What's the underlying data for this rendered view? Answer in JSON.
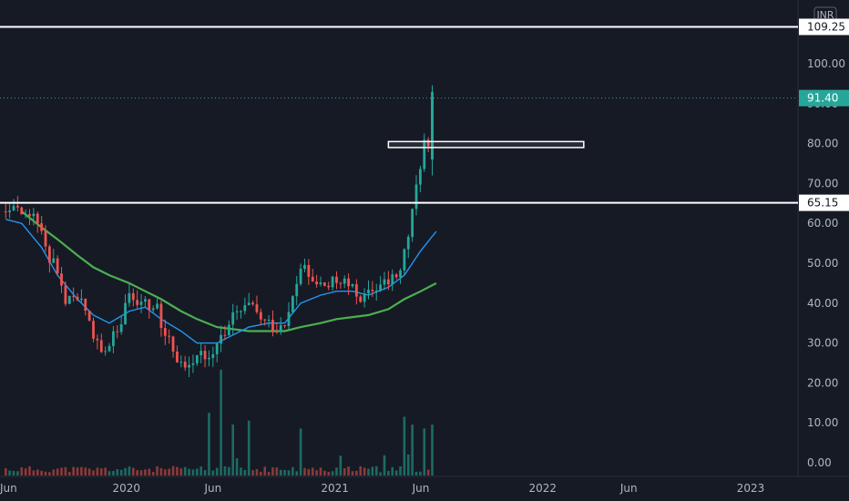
{
  "chart_data": {
    "type": "candlestick",
    "currency": "INR",
    "y_axis": {
      "min": 0,
      "max": 110,
      "ticks": [
        "0.00",
        "10.00",
        "20.00",
        "30.00",
        "40.00",
        "50.00",
        "60.00",
        "70.00",
        "80.00",
        "90.00",
        "100.00"
      ]
    },
    "x_axis": {
      "labels": [
        {
          "label": "Jun",
          "date": "2019-06-01"
        },
        {
          "label": "2020",
          "date": "2020-01-01"
        },
        {
          "label": "Jun",
          "date": "2020-06-01"
        },
        {
          "label": "2021",
          "date": "2021-01-01"
        },
        {
          "label": "Jun",
          "date": "2021-06-01"
        },
        {
          "label": "2022",
          "date": "2022-01-01"
        },
        {
          "label": "Jun",
          "date": "2022-06-01"
        },
        {
          "label": "2023",
          "date": "2023-01-01"
        }
      ]
    },
    "last_price": {
      "value": 91.4,
      "label": "91.40",
      "color": "#26a69a"
    },
    "levels": [
      {
        "value": 109.25,
        "label": "109.25"
      },
      {
        "value": 65.15,
        "label": "65.15"
      }
    ],
    "zone": {
      "from": "2021-04-05",
      "to": "2022-03-14",
      "low": 79,
      "high": 80.5
    },
    "price_path": [
      [
        "2019-06-03",
        63
      ],
      [
        "2019-06-24",
        65
      ],
      [
        "2019-07-22",
        62
      ],
      [
        "2019-08-19",
        52
      ],
      [
        "2019-09-16",
        41
      ],
      [
        "2019-10-14",
        40
      ],
      [
        "2019-11-04",
        33
      ],
      [
        "2019-11-25",
        27
      ],
      [
        "2019-12-16",
        34
      ],
      [
        "2020-01-06",
        42
      ],
      [
        "2020-02-03",
        41
      ],
      [
        "2020-02-24",
        38
      ],
      [
        "2020-03-16",
        30
      ],
      [
        "2020-04-06",
        25
      ],
      [
        "2020-04-27",
        26
      ],
      [
        "2020-05-25",
        28
      ],
      [
        "2020-06-15",
        31
      ],
      [
        "2020-07-06",
        36
      ],
      [
        "2020-08-03",
        39
      ],
      [
        "2020-08-31",
        35
      ],
      [
        "2020-09-21",
        34
      ],
      [
        "2020-10-12",
        37
      ],
      [
        "2020-11-02",
        49
      ],
      [
        "2020-11-23",
        45
      ],
      [
        "2020-12-21",
        44
      ],
      [
        "2021-01-11",
        46
      ],
      [
        "2021-02-01",
        43
      ],
      [
        "2021-02-22",
        41
      ],
      [
        "2021-03-15",
        44
      ],
      [
        "2021-04-05",
        45
      ],
      [
        "2021-04-26",
        48
      ],
      [
        "2021-05-10",
        57
      ],
      [
        "2021-05-17",
        62
      ],
      [
        "2021-05-24",
        69
      ],
      [
        "2021-05-31",
        75
      ],
      [
        "2021-06-07",
        80
      ],
      [
        "2021-06-14",
        78
      ],
      [
        "2021-06-21",
        91.4
      ]
    ],
    "ema_fast": [
      [
        "2019-06-03",
        61
      ],
      [
        "2019-07-01",
        60
      ],
      [
        "2019-08-05",
        54
      ],
      [
        "2019-09-02",
        47
      ],
      [
        "2019-10-07",
        41
      ],
      [
        "2019-11-04",
        37
      ],
      [
        "2019-12-02",
        35
      ],
      [
        "2020-01-06",
        38
      ],
      [
        "2020-02-03",
        39
      ],
      [
        "2020-03-02",
        36
      ],
      [
        "2020-04-06",
        33
      ],
      [
        "2020-05-04",
        30
      ],
      [
        "2020-06-08",
        30
      ],
      [
        "2020-07-06",
        32
      ],
      [
        "2020-08-03",
        34
      ],
      [
        "2020-09-07",
        35
      ],
      [
        "2020-10-05",
        35
      ],
      [
        "2020-11-02",
        40
      ],
      [
        "2020-12-07",
        42
      ],
      [
        "2021-01-04",
        43
      ],
      [
        "2021-02-01",
        43
      ],
      [
        "2021-03-01",
        42
      ],
      [
        "2021-04-05",
        44
      ],
      [
        "2021-05-03",
        47
      ],
      [
        "2021-05-31",
        53
      ],
      [
        "2021-06-28",
        58
      ]
    ],
    "ema_slow": [
      [
        "2019-07-01",
        63
      ],
      [
        "2019-08-05",
        59
      ],
      [
        "2019-09-02",
        56
      ],
      [
        "2019-10-07",
        52
      ],
      [
        "2019-11-04",
        49
      ],
      [
        "2019-12-02",
        47
      ],
      [
        "2020-01-06",
        45
      ],
      [
        "2020-02-03",
        43
      ],
      [
        "2020-03-02",
        41
      ],
      [
        "2020-04-06",
        38
      ],
      [
        "2020-05-04",
        36
      ],
      [
        "2020-06-08",
        34
      ],
      [
        "2020-07-06",
        33.5
      ],
      [
        "2020-08-03",
        33
      ],
      [
        "2020-09-07",
        33
      ],
      [
        "2020-10-05",
        33
      ],
      [
        "2020-11-02",
        34
      ],
      [
        "2020-12-07",
        35
      ],
      [
        "2021-01-04",
        36
      ],
      [
        "2021-02-01",
        36.5
      ],
      [
        "2021-03-01",
        37
      ],
      [
        "2021-04-05",
        38.5
      ],
      [
        "2021-05-03",
        41
      ],
      [
        "2021-06-01",
        43
      ],
      [
        "2021-06-28",
        45
      ]
    ],
    "volume_spikes": [
      [
        "2020-05-25",
        16
      ],
      [
        "2020-06-15",
        27
      ],
      [
        "2020-07-06",
        13
      ],
      [
        "2020-08-03",
        14
      ],
      [
        "2020-11-02",
        12
      ],
      [
        "2021-05-03",
        15
      ],
      [
        "2021-05-17",
        13
      ],
      [
        "2021-06-07",
        12
      ],
      [
        "2021-06-21",
        13
      ]
    ],
    "colors": {
      "up": "#26a69a",
      "down": "#ef5350",
      "ema_fast": "#2196f3",
      "ema_slow": "#4caf50",
      "background": "#161a25"
    }
  }
}
